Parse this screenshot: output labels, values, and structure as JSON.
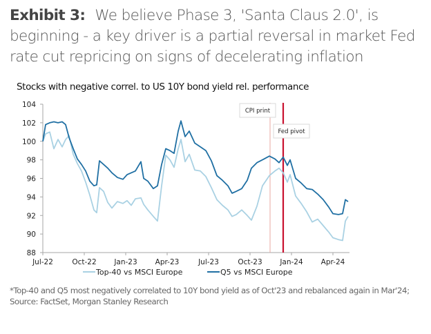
{
  "exhibit": {
    "label": "Exhibit 3:",
    "title": "We believe Phase 3, 'Santa Claus 2.0', is beginning - a key driver is a partial reversal in market Fed rate cut repricing on signs of decelerating inflation"
  },
  "footnote": {
    "line1": "*Top-40 and Q5 most negatively correlated to 10Y bond yield as of Oct'23 and rebalanced again in Mar'24;",
    "line2": "Source: FactSet, Morgan Stanley Research"
  },
  "chart_data": {
    "type": "line",
    "title": "Stocks with negative correl. to US 10Y bond yield rel. performance",
    "xlabel": "",
    "ylabel": "",
    "ylim": [
      88,
      104
    ],
    "yticks": [
      88,
      90,
      92,
      94,
      96,
      98,
      100,
      102,
      104
    ],
    "xlim_months": [
      0,
      23.4
    ],
    "xticks": [
      {
        "label": "Jul-22",
        "month": 0
      },
      {
        "label": "Oct-22",
        "month": 3
      },
      {
        "label": "Jan-23",
        "month": 6
      },
      {
        "label": "Apr-23",
        "month": 9
      },
      {
        "label": "Jul-23",
        "month": 12
      },
      {
        "label": "Oct-23",
        "month": 15
      },
      {
        "label": "Jan-24",
        "month": 18
      },
      {
        "label": "Apr-24",
        "month": 21
      }
    ],
    "grid": false,
    "legend_position": "bottom",
    "annotations": [
      {
        "label": "CPI print",
        "month": 16.45,
        "color": "#e8a7a0",
        "style": "thin"
      },
      {
        "label": "Fed pivot",
        "month": 17.4,
        "color": "#c8102e",
        "style": "thick"
      }
    ],
    "x_months": [
      0,
      0.2,
      0.5,
      0.8,
      1.1,
      1.4,
      1.65,
      1.9,
      2.2,
      2.5,
      2.8,
      3.1,
      3.4,
      3.7,
      3.9,
      4.1,
      4.4,
      4.7,
      5.0,
      5.4,
      5.8,
      6.1,
      6.4,
      6.7,
      7.1,
      7.3,
      7.6,
      8.0,
      8.3,
      8.6,
      8.9,
      9.2,
      9.5,
      9.8,
      10.0,
      10.3,
      10.6,
      11.0,
      11.4,
      11.8,
      12.2,
      12.6,
      13.0,
      13.4,
      13.7,
      14.0,
      14.4,
      14.8,
      15.1,
      15.5,
      15.9,
      16.4,
      16.8,
      17.1,
      17.4,
      17.7,
      17.9,
      18.3,
      18.7,
      19.1,
      19.5,
      19.9,
      20.3,
      20.7,
      21.0,
      21.4,
      21.7,
      21.9,
      22.1
    ],
    "series": [
      {
        "name": "Q5 vs MSCI Europe",
        "color": "#1f6fa3",
        "values": [
          100.0,
          101.8,
          102.0,
          102.1,
          102.0,
          102.1,
          101.8,
          100.4,
          99.2,
          98.1,
          97.5,
          96.8,
          95.7,
          95.2,
          95.3,
          97.9,
          97.5,
          97.1,
          96.6,
          96.1,
          95.9,
          96.4,
          96.6,
          96.8,
          97.8,
          96.0,
          95.7,
          94.9,
          95.2,
          97.5,
          99.2,
          99.0,
          98.7,
          101.1,
          102.2,
          100.5,
          101.1,
          99.8,
          99.4,
          99.0,
          97.9,
          96.3,
          95.8,
          95.2,
          94.4,
          94.6,
          94.9,
          95.8,
          97.1,
          97.7,
          98.0,
          98.4,
          98.1,
          97.7,
          98.3,
          97.4,
          98.0,
          96.0,
          95.5,
          94.9,
          94.8,
          94.3,
          93.7,
          92.9,
          92.2,
          92.1,
          92.2,
          93.7,
          93.5
        ]
      },
      {
        "name": "Top-40 vs MSCI Europe",
        "color": "#a9d1e3",
        "values": [
          100.0,
          100.8,
          101.0,
          99.2,
          100.2,
          99.4,
          100.2,
          100.6,
          98.6,
          97.6,
          96.8,
          95.6,
          94.2,
          92.6,
          92.3,
          95.0,
          94.6,
          93.4,
          92.8,
          93.5,
          93.3,
          93.6,
          93.1,
          93.8,
          93.9,
          93.2,
          92.6,
          91.9,
          91.4,
          95.2,
          98.5,
          98.0,
          97.2,
          99.2,
          100.2,
          97.8,
          98.6,
          96.9,
          96.8,
          96.2,
          95.0,
          93.7,
          93.1,
          92.6,
          91.9,
          92.1,
          92.6,
          92.0,
          91.5,
          93.0,
          95.2,
          96.3,
          96.8,
          97.1,
          96.6,
          95.6,
          96.4,
          94.1,
          93.3,
          92.4,
          91.3,
          91.6,
          90.9,
          90.2,
          89.6,
          89.4,
          89.3,
          91.4,
          91.9
        ]
      }
    ]
  }
}
